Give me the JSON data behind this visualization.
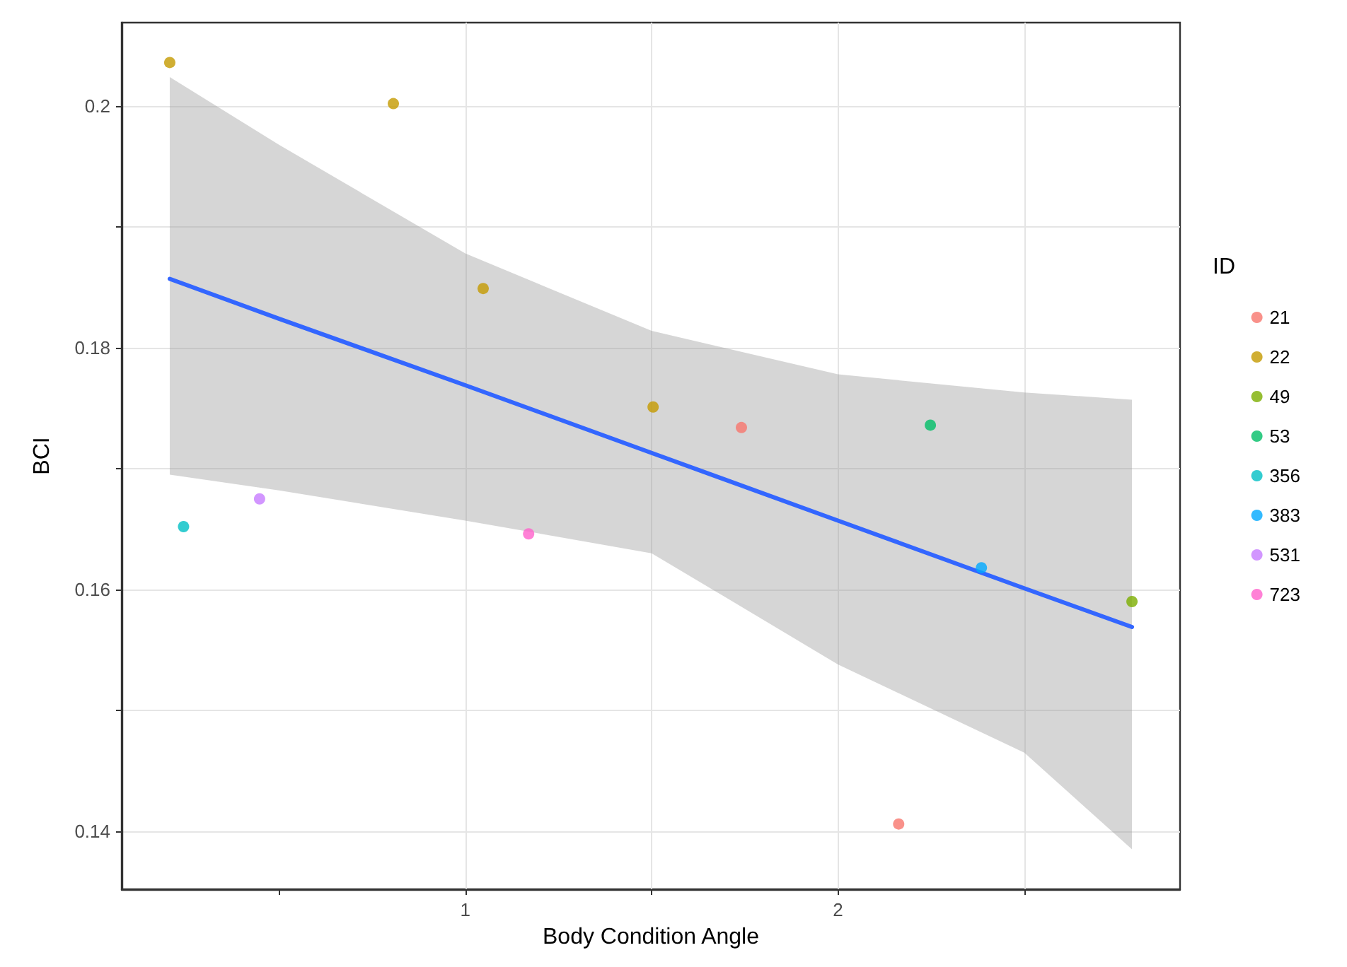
{
  "chart_data": {
    "type": "scatter",
    "xlabel": "Body Condition Angle",
    "ylabel": "BCI",
    "legend_title": "ID",
    "legend": "right",
    "grid": true,
    "marker": "circle",
    "xlim": [
      0.078,
      2.918
    ],
    "xticks": [
      {
        "value": 0.5,
        "label": null
      },
      1,
      {
        "value": 1.5,
        "label": null
      },
      2,
      {
        "value": 2.5,
        "label": null
      }
    ],
    "ylim": [
      0.1352,
      0.2069
    ],
    "yticks": [
      0.14,
      {
        "value": 0.15,
        "label": null
      },
      0.16,
      {
        "value": 0.17,
        "label": null
      },
      0.18,
      {
        "value": 0.19,
        "label": null
      },
      0.2
    ],
    "series": [
      {
        "name": "21",
        "color": "#f8766d",
        "x": [
          1.741,
          2.163
        ],
        "values": [
          0.1734,
          0.1406
        ]
      },
      {
        "name": "22",
        "color": "#c49a00",
        "x": [
          0.207,
          0.807,
          1.048,
          1.504
        ],
        "values": [
          0.2036,
          0.2002,
          0.1849,
          0.1751
        ]
      },
      {
        "name": "49",
        "color": "#7cae00",
        "x": [
          2.789
        ],
        "values": [
          0.159
        ]
      },
      {
        "name": "53",
        "color": "#00be67",
        "x": [
          2.248
        ],
        "values": [
          0.1736
        ]
      },
      {
        "name": "356",
        "color": "#00bfc4",
        "x": [
          0.244
        ],
        "values": [
          0.1652
        ]
      },
      {
        "name": "383",
        "color": "#00a9ff",
        "x": [
          2.385
        ],
        "values": [
          0.1618
        ]
      },
      {
        "name": "531",
        "color": "#c77cff",
        "x": [
          0.448
        ],
        "values": [
          0.1675
        ]
      },
      {
        "name": "723",
        "color": "#ff61cc",
        "x": [
          1.17
        ],
        "values": [
          0.1646
        ]
      },
      {
        "type": "line",
        "marker": "none",
        "color": "#3366ff",
        "x": [
          0.207,
          0.5,
          1,
          1.5,
          2,
          2.5,
          2.789
        ],
        "values": [
          0.1857,
          0.1824,
          0.1769,
          0.1713,
          0.1657,
          0.1601,
          0.1569
        ],
        "lower": [
          0.1695,
          0.1682,
          0.1657,
          0.163,
          0.1538,
          0.1465,
          0.1385
        ],
        "upper": [
          0.2024,
          0.1968,
          0.1878,
          0.1814,
          0.1778,
          0.1763,
          0.1757
        ]
      }
    ]
  }
}
